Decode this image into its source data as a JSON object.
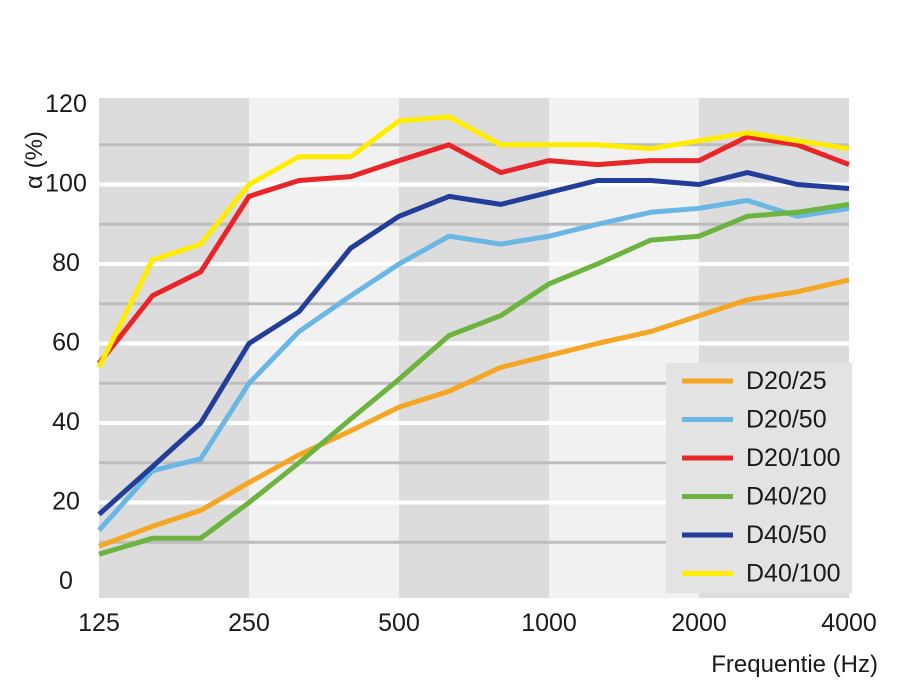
{
  "chart_data": {
    "type": "line",
    "title": "",
    "xlabel": "Frequentie (Hz)",
    "ylabel": "α  (%)",
    "ylim": [
      0,
      120
    ],
    "y_ticks": [
      0,
      20,
      40,
      60,
      80,
      100,
      120
    ],
    "x_tick_labels": [
      "125",
      "250",
      "500",
      "1000",
      "2000",
      "4000"
    ],
    "x": [
      125,
      160,
      200,
      250,
      315,
      400,
      500,
      630,
      800,
      1000,
      1250,
      1600,
      2000,
      2500,
      3150,
      4000
    ],
    "legend_position": "bottom-right",
    "series": [
      {
        "name": "D20/25",
        "color": "#f5a623",
        "values": [
          9,
          14,
          18,
          25,
          32,
          38,
          44,
          48,
          54,
          57,
          60,
          63,
          67,
          71,
          73,
          76
        ]
      },
      {
        "name": "D20/50",
        "color": "#6ab7e6",
        "values": [
          13,
          28,
          31,
          50,
          63,
          72,
          80,
          87,
          85,
          87,
          90,
          93,
          94,
          96,
          92,
          94
        ]
      },
      {
        "name": "D20/100",
        "color": "#e8262a",
        "values": [
          55,
          72,
          78,
          97,
          101,
          102,
          106,
          110,
          103,
          106,
          105,
          106,
          106,
          112,
          110,
          105
        ]
      },
      {
        "name": "D40/20",
        "color": "#6cb33f",
        "values": [
          7,
          11,
          11,
          20,
          30,
          41,
          51,
          62,
          67,
          75,
          80,
          86,
          87,
          92,
          93,
          95
        ]
      },
      {
        "name": "D40/50",
        "color": "#233e99",
        "values": [
          17,
          29,
          40,
          60,
          68,
          84,
          92,
          97,
          95,
          98,
          101,
          101,
          100,
          103,
          100,
          99
        ]
      },
      {
        "name": "D40/100",
        "color": "#ffec00",
        "values": [
          54,
          81,
          85,
          100,
          107,
          107,
          116,
          117,
          110,
          110,
          110,
          109,
          111,
          113,
          111,
          109
        ]
      }
    ]
  }
}
